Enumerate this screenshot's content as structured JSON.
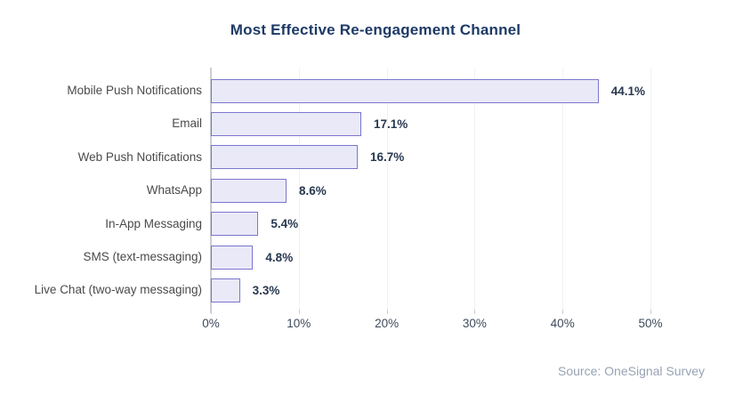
{
  "chart_data": {
    "type": "bar",
    "orientation": "horizontal",
    "title": "Most Effective Re-engagement Channel",
    "categories": [
      "Mobile Push Notifications",
      "Email",
      "Web Push Notifications",
      "WhatsApp",
      "In-App Messaging",
      "SMS (text-messaging)",
      "Live Chat (two-way messaging)"
    ],
    "values": [
      44.1,
      17.1,
      16.7,
      8.6,
      5.4,
      4.8,
      3.3
    ],
    "value_labels": [
      "44.1%",
      "17.1%",
      "16.7%",
      "8.6%",
      "5.4%",
      "4.8%",
      "3.3%"
    ],
    "xlabel": "",
    "ylabel": "",
    "xlim": [
      0,
      50
    ],
    "x_tick_values": [
      0,
      10,
      20,
      30,
      40,
      50
    ],
    "x_tick_labels": [
      "0%",
      "10%",
      "20%",
      "30%",
      "40%",
      "50%"
    ],
    "grid": "vertical-faint",
    "legend": "none"
  },
  "source": "Source: OneSignal Survey",
  "colors": {
    "title_text": "#1d3a66",
    "bar_fill": "#eae9f8",
    "bar_border": "#7b76ce",
    "value_text": "#283850",
    "category_text": "#4a4a4a",
    "tick_text": "#3e4a5b",
    "axis_line": "#c9ced6",
    "gridline": "#f0f1f5",
    "source_text": "#97a3b3",
    "background": "#ffffff"
  }
}
